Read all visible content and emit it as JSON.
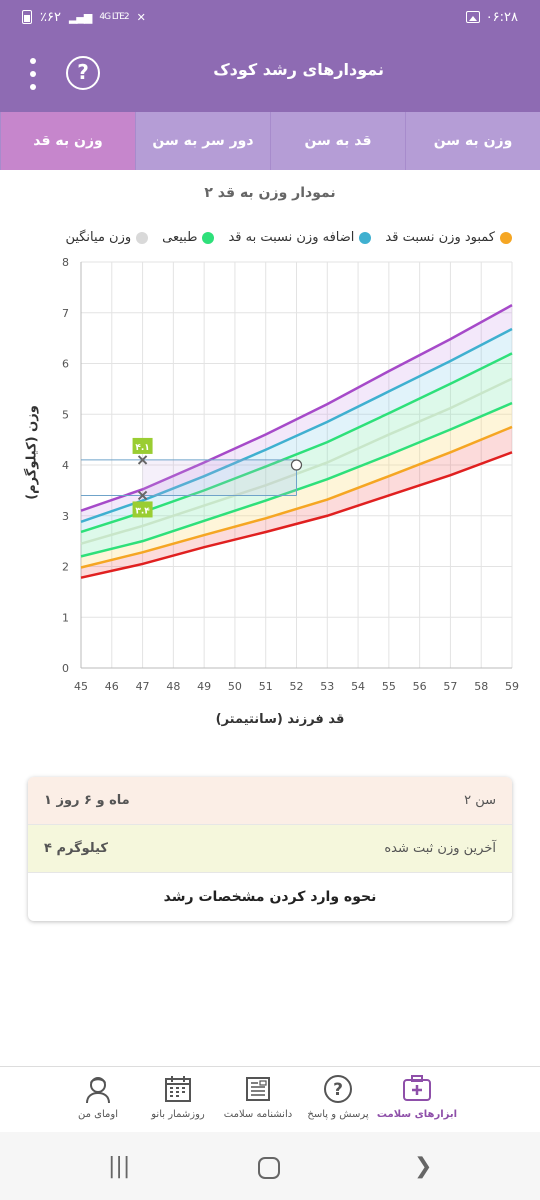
{
  "status_bar": {
    "time": "۰۶:۲۸",
    "battery": "٪۶۲",
    "network": "4G LTE2"
  },
  "header": {
    "title": "نمودارهای رشد کودک",
    "help_label": "?"
  },
  "tabs": [
    {
      "label": "وزن به سن",
      "active": false
    },
    {
      "label": "قد به سن",
      "active": false
    },
    {
      "label": "دور سر به سن",
      "active": false
    },
    {
      "label": "وزن به قد",
      "active": true
    }
  ],
  "chart_title": "نمودار وزن به قد ۲",
  "legend": [
    {
      "label": "کمبود وزن نسبت قد",
      "color": "#f5a623"
    },
    {
      "label": "اضافه وزن نسبت به قد",
      "color": "#3fb0d0"
    },
    {
      "label": "طبیعی",
      "color": "#2ee07a"
    },
    {
      "label": "وزن میانگین",
      "color": "#d9d9d9"
    }
  ],
  "chart_data": {
    "type": "line",
    "xlabel": "قد فرزند (سانتیمتر)",
    "ylabel": "وزن (کیلوگرم)",
    "xlim": [
      45,
      59
    ],
    "ylim": [
      0,
      8
    ],
    "x_ticks": [
      45,
      46,
      47,
      48,
      49,
      50,
      51,
      52,
      53,
      54,
      55,
      56,
      57,
      58,
      59
    ],
    "y_ticks": [
      0,
      1,
      2,
      3,
      4,
      5,
      6,
      7,
      8
    ],
    "grid": true,
    "series": [
      {
        "color": "#e02020",
        "x": [
          45,
          47,
          49,
          51,
          53,
          55,
          57,
          59
        ],
        "values": [
          1.78,
          2.05,
          2.38,
          2.68,
          3.0,
          3.4,
          3.8,
          4.25
        ]
      },
      {
        "color": "#f5a623",
        "x": [
          45,
          47,
          49,
          51,
          53,
          55,
          57,
          59
        ],
        "values": [
          1.98,
          2.28,
          2.62,
          2.95,
          3.32,
          3.78,
          4.25,
          4.75
        ]
      },
      {
        "color": "#2ee07a",
        "x": [
          45,
          47,
          49,
          51,
          53,
          55,
          57,
          59
        ],
        "values": [
          2.2,
          2.5,
          2.9,
          3.3,
          3.72,
          4.2,
          4.7,
          5.22
        ]
      },
      {
        "color": "#c8e6c9",
        "x": [
          45,
          47,
          49,
          51,
          53,
          55,
          57,
          59
        ],
        "values": [
          2.45,
          2.8,
          3.2,
          3.6,
          4.05,
          4.6,
          5.12,
          5.7
        ]
      },
      {
        "color": "#2ee07a",
        "x": [
          45,
          47,
          49,
          51,
          53,
          55,
          57,
          59
        ],
        "values": [
          2.68,
          3.07,
          3.5,
          3.97,
          4.45,
          5.02,
          5.6,
          6.2
        ]
      },
      {
        "color": "#3fb0d0",
        "x": [
          45,
          47,
          49,
          51,
          53,
          55,
          57,
          59
        ],
        "values": [
          2.88,
          3.3,
          3.78,
          4.3,
          4.85,
          5.45,
          6.05,
          6.68
        ]
      },
      {
        "color": "#a64ac9",
        "x": [
          45,
          47,
          49,
          51,
          53,
          55,
          57,
          59
        ],
        "values": [
          3.1,
          3.52,
          4.05,
          4.6,
          5.2,
          5.85,
          6.48,
          7.15
        ]
      }
    ],
    "markers": [
      {
        "x": 47,
        "y": 4.1,
        "label": "۴.۱"
      },
      {
        "x": 47,
        "y": 3.4,
        "label": "۳.۴"
      },
      {
        "x": 52,
        "y": 4.0,
        "label": ""
      }
    ]
  },
  "info": {
    "age_label": "سن ۲",
    "age_value": "۱ ماه و ۶ روز",
    "weight_label": "آخرین وزن ثبت شده",
    "weight_value": "۴ کیلوگرم",
    "link_label": "نحوه وارد کردن مشخصات رشد"
  },
  "bottom_nav": [
    {
      "label": "ابزارهای سلامت",
      "icon": "health-kit-icon",
      "active": true
    },
    {
      "label": "پرسش و پاسخ",
      "icon": "question-icon",
      "active": false
    },
    {
      "label": "دانشنامه سلامت",
      "icon": "encyclopedia-icon",
      "active": false
    },
    {
      "label": "روزشمار بانو",
      "icon": "calendar-icon",
      "active": false
    },
    {
      "label": "اومای من",
      "icon": "profile-icon",
      "active": false
    }
  ]
}
